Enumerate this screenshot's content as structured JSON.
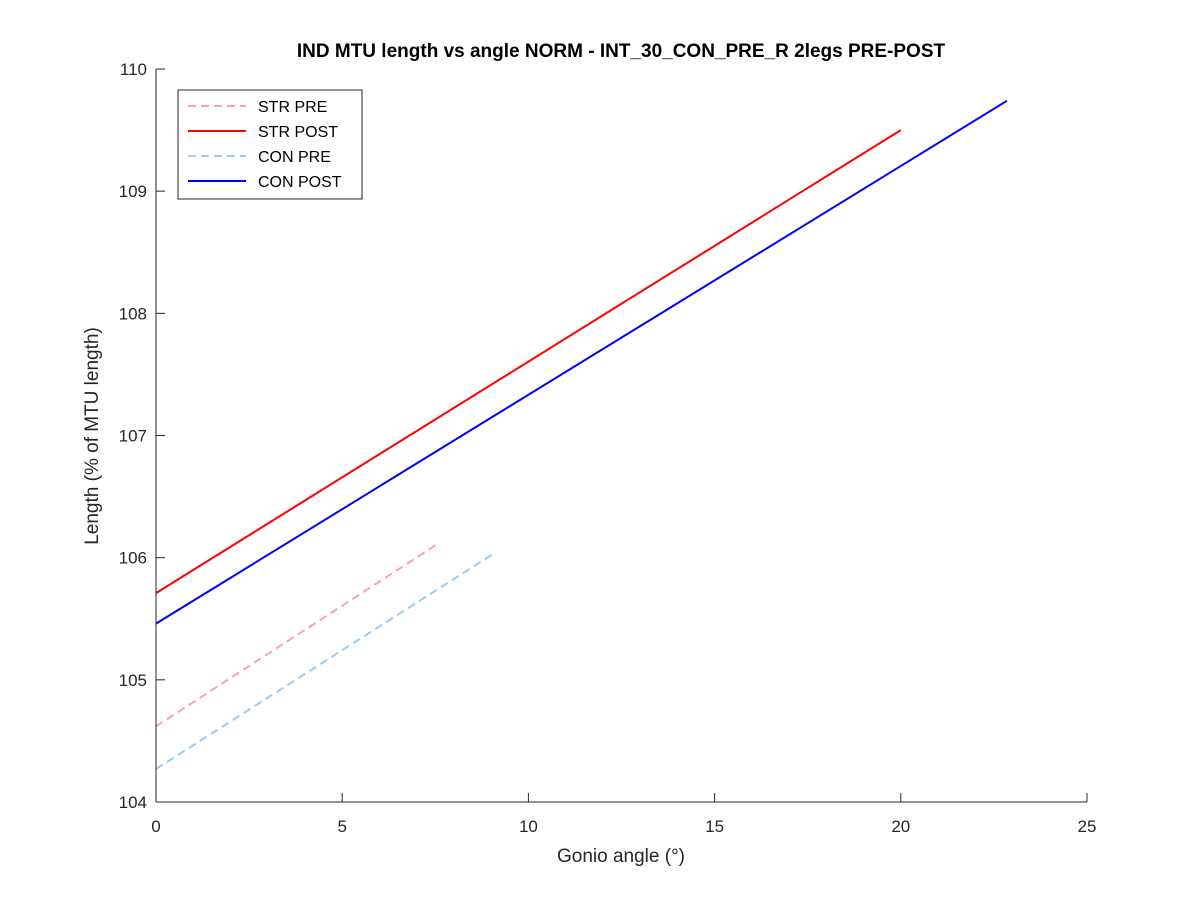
{
  "window": {
    "background": "#ffffff"
  },
  "chart_data": {
    "type": "line",
    "title": "IND MTU length vs angle NORM - INT_30_CON_PRE_R 2legs PRE-POST",
    "xlabel": "Gonio angle (°)",
    "ylabel": "Length (% of MTU length)",
    "xlim": [
      0,
      25
    ],
    "ylim": [
      104,
      110
    ],
    "xticks": [
      0,
      5,
      10,
      15,
      20,
      25
    ],
    "yticks": [
      104,
      105,
      106,
      107,
      108,
      109,
      110
    ],
    "xtick_labels": [
      "0",
      "5",
      "10",
      "15",
      "20",
      "25"
    ],
    "ytick_labels": [
      "104",
      "105",
      "106",
      "107",
      "108",
      "109",
      "110"
    ],
    "grid": false,
    "box": false,
    "legend_position": "top-left",
    "series": [
      {
        "name": "STR PRE",
        "color": "#ff99cc",
        "style": "dashed",
        "x": [
          0,
          7.6
        ],
        "y": [
          104.62,
          106.12
        ]
      },
      {
        "name": "STR POST",
        "color": "#ff0000",
        "style": "solid",
        "x": [
          0,
          20.0
        ],
        "y": [
          105.71,
          109.5
        ]
      },
      {
        "name": "CON PRE",
        "color": "#99ccee",
        "style": "dashed",
        "x": [
          0,
          9.1
        ],
        "y": [
          104.27,
          106.04
        ]
      },
      {
        "name": "CON POST",
        "color": "#0000ff",
        "style": "solid",
        "x": [
          0,
          22.85
        ],
        "y": [
          105.46,
          109.74
        ]
      }
    ]
  }
}
